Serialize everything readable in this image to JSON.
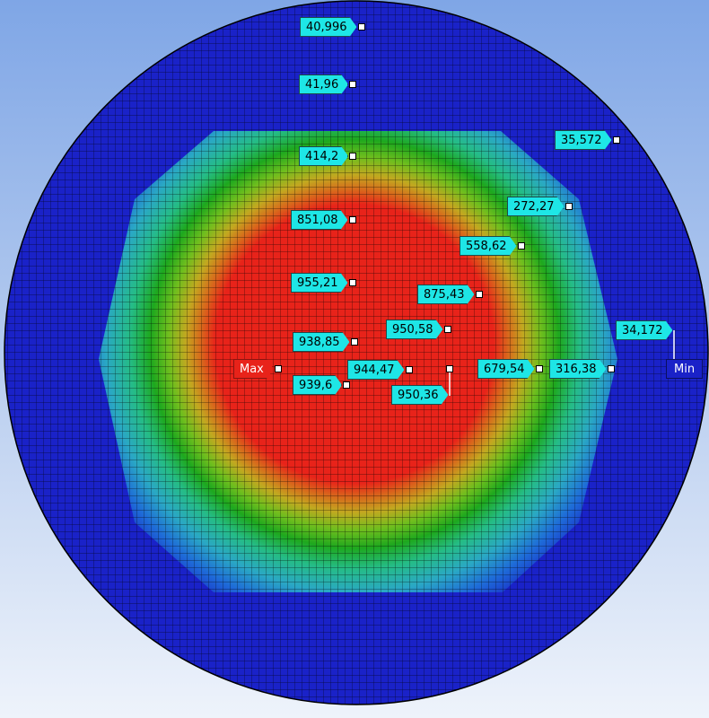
{
  "view": {
    "colors": {
      "background_top": "#7fa6e6",
      "contour_max": "#e8231a",
      "contour_min": "#1a22c8",
      "probe_label": "#1ee6e6",
      "mesh_line": "#000000"
    }
  },
  "labels": {
    "max": "Max",
    "min": "Min"
  },
  "probes": [
    {
      "id": "p1",
      "value": "40,996"
    },
    {
      "id": "p2",
      "value": "41,96"
    },
    {
      "id": "p3",
      "value": "35,572"
    },
    {
      "id": "p4",
      "value": "414,2"
    },
    {
      "id": "p5",
      "value": "272,27"
    },
    {
      "id": "p6",
      "value": "851,08"
    },
    {
      "id": "p7",
      "value": "558,62"
    },
    {
      "id": "p8",
      "value": "955,21"
    },
    {
      "id": "p9",
      "value": "875,43"
    },
    {
      "id": "p10",
      "value": "950,58"
    },
    {
      "id": "p11",
      "value": "34,172"
    },
    {
      "id": "p12",
      "value": "938,85"
    },
    {
      "id": "p13",
      "value": "944,47"
    },
    {
      "id": "p14",
      "value": "679,54"
    },
    {
      "id": "p15",
      "value": "316,38"
    },
    {
      "id": "p16",
      "value": "939,6"
    },
    {
      "id": "p17",
      "value": "950,36"
    }
  ]
}
